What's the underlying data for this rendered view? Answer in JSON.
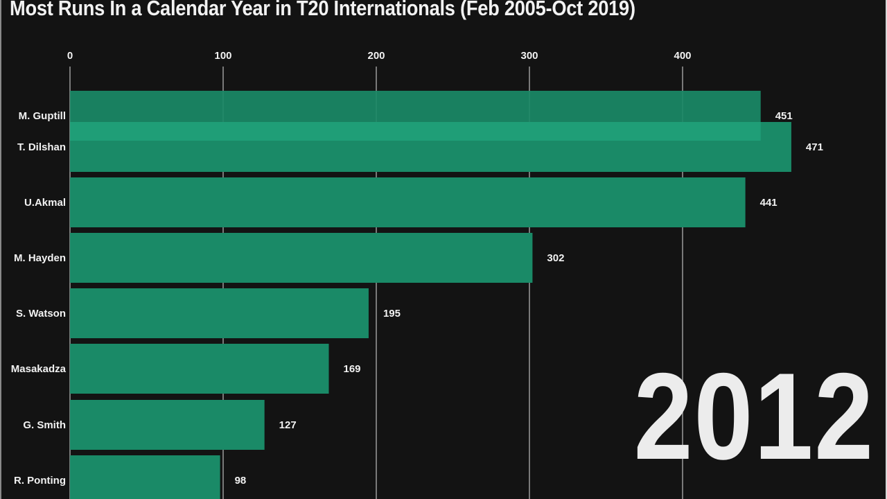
{
  "chart_data": {
    "type": "bar",
    "orientation": "horizontal",
    "title": "Most Runs In a Calendar Year in T20 Internationals (Feb 2005-Oct 2019)",
    "xlabel": "",
    "ylabel": "",
    "x_ticks": [
      0,
      100,
      200,
      300,
      400
    ],
    "xlim": [
      0,
      471
    ],
    "grid": true,
    "period_label": "2012",
    "bar_color": "#1a8a67",
    "categories": [
      "M. Guptill",
      "T. Dilshan",
      "U.Akmal",
      "M. Hayden",
      "S. Watson",
      "Masakadza",
      "G. Smith",
      "R. Ponting"
    ],
    "values": [
      451,
      471,
      441,
      302,
      195,
      169,
      127,
      98
    ],
    "value_labels": [
      "451",
      "471",
      "441",
      "302",
      "195",
      "169",
      "127",
      "98"
    ]
  },
  "colors": {
    "background": "#131313",
    "bar": "#1a8a67",
    "bar_overlap": "#1f9e77",
    "gridline": "#bdbdbd",
    "text": "#f2f2f2"
  }
}
